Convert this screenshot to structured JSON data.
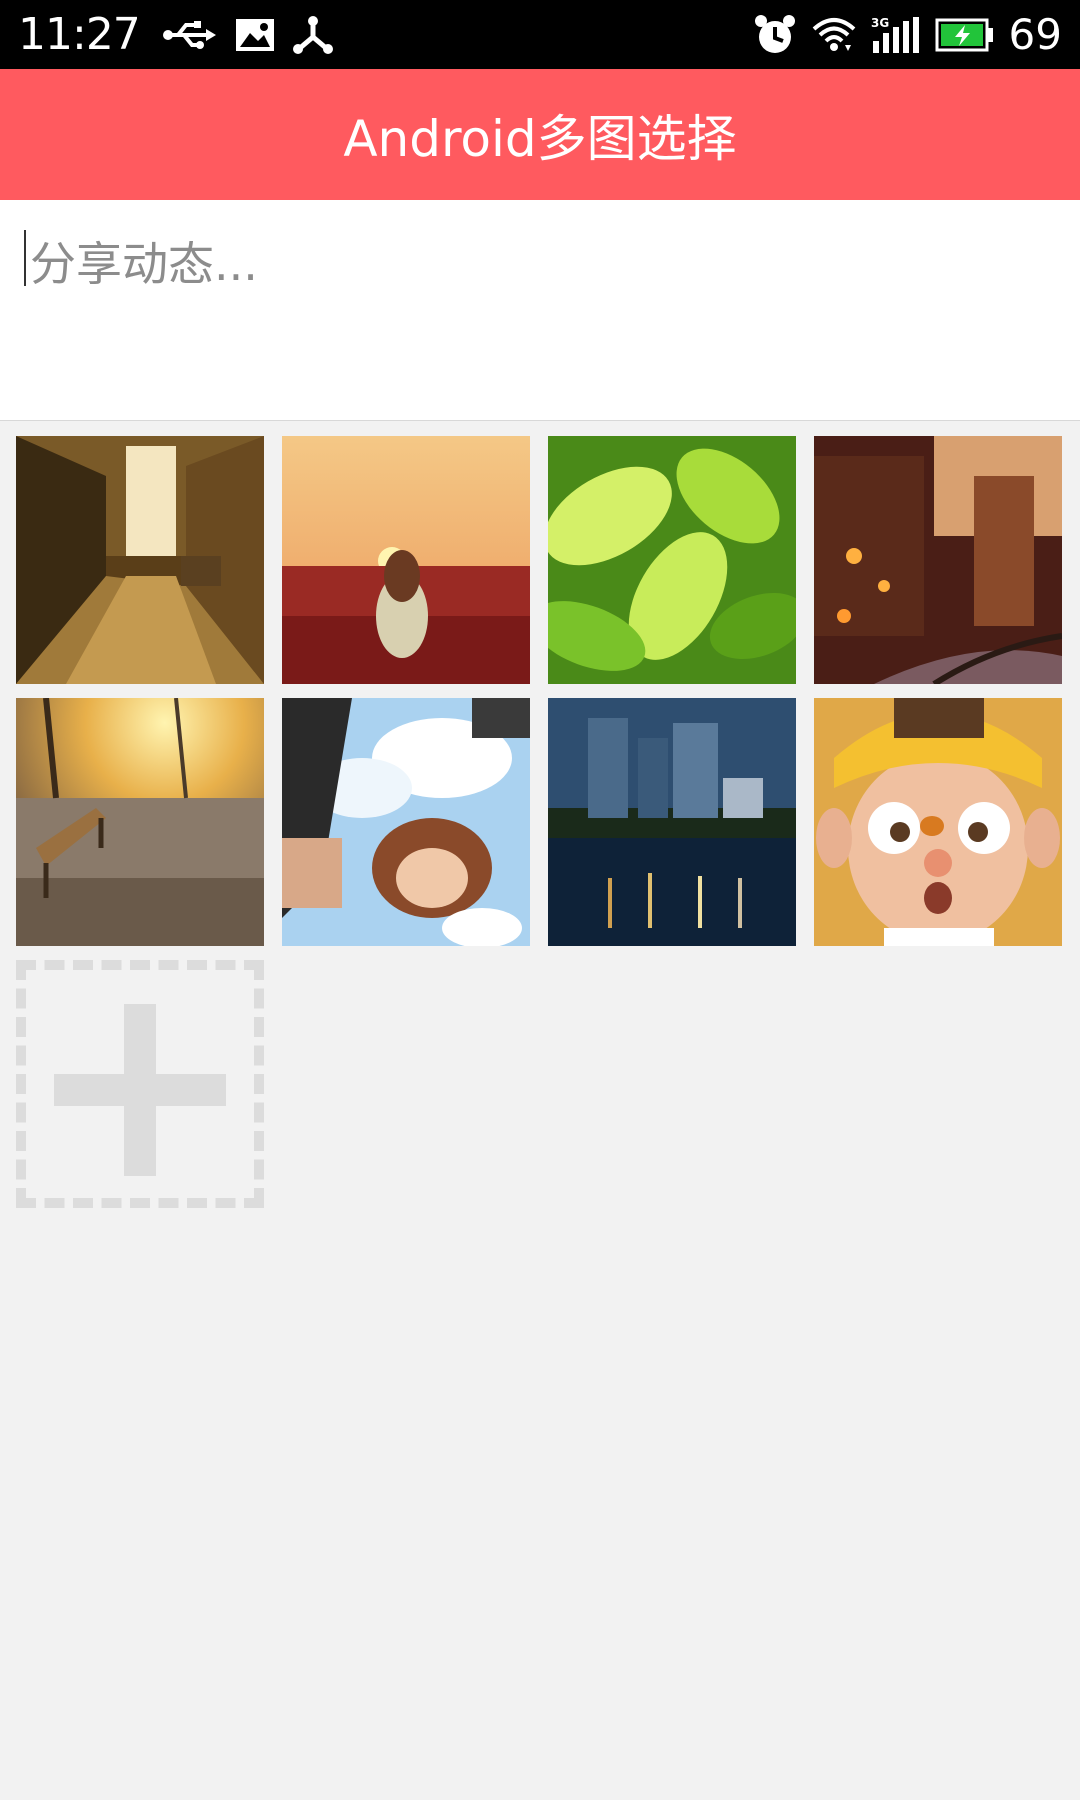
{
  "status_bar": {
    "time": "11:27",
    "battery": "69",
    "icons_left": [
      "usb-icon",
      "image-icon",
      "share-icon"
    ],
    "icons_right": [
      "alarm-icon",
      "wifi-icon",
      "signal-3g-icon",
      "battery-icon"
    ]
  },
  "title_bar": {
    "title": "Android多图选择",
    "color": "#ff5a5f"
  },
  "compose": {
    "placeholder": "分享动态..."
  },
  "photos": [
    {
      "name": "photo-alley",
      "colors": [
        "#3a2a12",
        "#a07a3a",
        "#d9b56a"
      ]
    },
    {
      "name": "photo-girl-flowers",
      "colors": [
        "#f2c88a",
        "#e8a060",
        "#8a2020"
      ]
    },
    {
      "name": "photo-green-leaves",
      "colors": [
        "#c8ec5a",
        "#7ac22a",
        "#2f6a10"
      ]
    },
    {
      "name": "photo-fantasy-town",
      "colors": [
        "#4a1e16",
        "#b0502a",
        "#e0a070"
      ]
    },
    {
      "name": "photo-sunset-bench",
      "colors": [
        "#f7d06a",
        "#c48a3a",
        "#5a4a3a"
      ]
    },
    {
      "name": "photo-anime-character",
      "colors": [
        "#cfe6f6",
        "#6aa8e0",
        "#8a4a3a"
      ]
    },
    {
      "name": "photo-city-night",
      "colors": [
        "#2a4a6a",
        "#1e3a5a",
        "#0a1a2a"
      ]
    },
    {
      "name": "photo-cartoon-boy",
      "colors": [
        "#f0c060",
        "#e8b080",
        "#9a6a30"
      ]
    }
  ],
  "add_button": {
    "icon": "plus-icon",
    "color": "#dcdcdc"
  }
}
